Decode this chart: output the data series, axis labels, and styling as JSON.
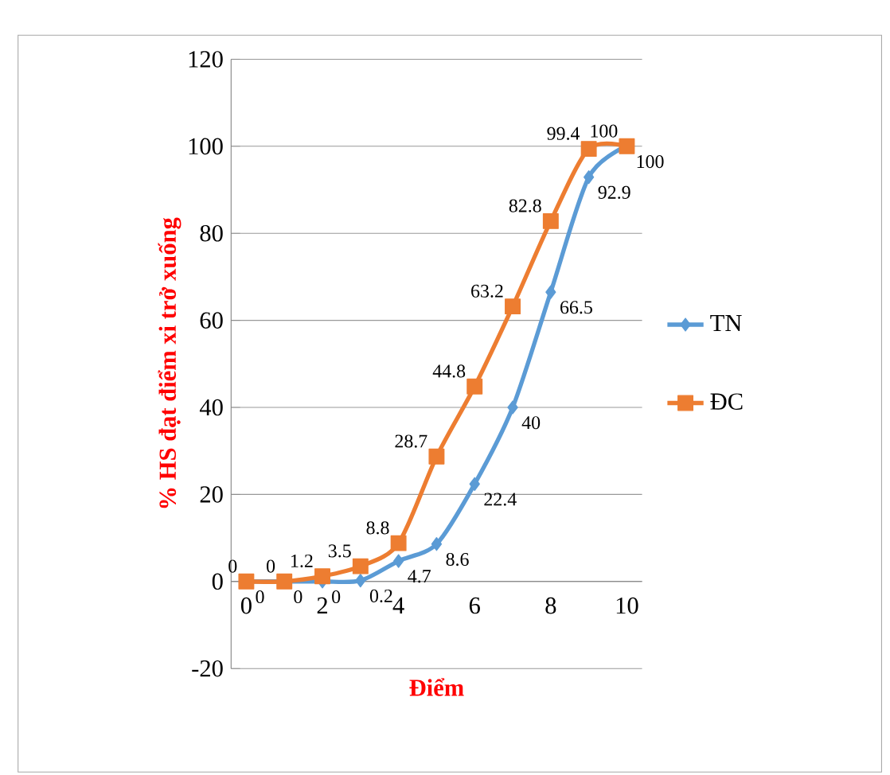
{
  "chart_data": {
    "type": "line",
    "xlabel": "Điểm",
    "ylabel": "% HS đạt điểm xi trở xuống",
    "x": [
      0,
      1,
      2,
      3,
      4,
      5,
      6,
      7,
      8,
      9,
      10
    ],
    "series": [
      {
        "name": "TN",
        "color": "#5b9bd5",
        "marker": "diamond",
        "values": [
          0,
          0,
          0,
          0.2,
          4.7,
          8.6,
          22.4,
          40,
          66.5,
          92.9,
          100
        ]
      },
      {
        "name": "ĐC",
        "color": "#ed7d31",
        "marker": "square",
        "values": [
          0,
          0,
          1.2,
          3.5,
          8.8,
          28.7,
          44.8,
          63.2,
          82.8,
          99.4,
          100
        ]
      }
    ],
    "xlim": [
      -0.4,
      10.4
    ],
    "xticks": [
      0,
      2,
      4,
      6,
      8,
      10
    ],
    "ylim": [
      -20,
      120
    ],
    "yticks": [
      -20,
      0,
      20,
      40,
      60,
      80,
      100,
      120
    ],
    "grid": "y",
    "legend": "right",
    "data_labels": true
  }
}
